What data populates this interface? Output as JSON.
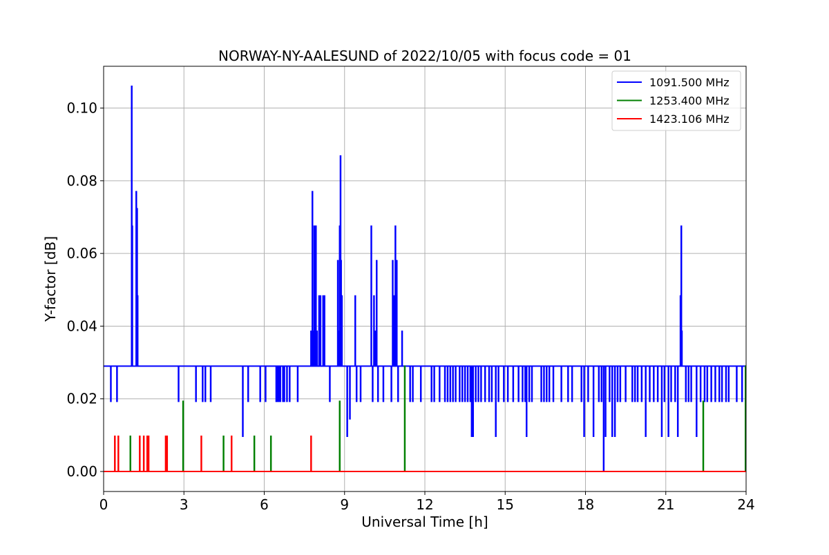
{
  "chart_data": {
    "type": "line",
    "title": "NORWAY-NY-AALESUND of 2022/10/05 with focus code = 01",
    "xlabel": "Universal Time [h]",
    "ylabel": "Y-factor [dB]",
    "xlim": [
      0,
      24
    ],
    "ylim": [
      -0.0055,
      0.1115
    ],
    "xticks": [
      0,
      3,
      6,
      9,
      12,
      15,
      18,
      21,
      24
    ],
    "xtick_labels": [
      "0",
      "3",
      "6",
      "9",
      "12",
      "15",
      "18",
      "21",
      "24"
    ],
    "yticks": [
      0.0,
      0.02,
      0.04,
      0.06,
      0.08,
      0.1
    ],
    "ytick_labels": [
      "0.00",
      "0.02",
      "0.04",
      "0.06",
      "0.08",
      "0.10"
    ],
    "grid": true,
    "legend_position": "top-right",
    "series": [
      {
        "name": "1091.500 MHz",
        "color": "#0000ff",
        "baseline": 0.029,
        "spikes": [
          [
            0.27,
            0.0193
          ],
          [
            0.5,
            0.0193
          ],
          [
            1.05,
            0.106
          ],
          [
            1.07,
            0.0675
          ],
          [
            1.1,
            0.029
          ],
          [
            1.22,
            0.077
          ],
          [
            1.25,
            0.0723
          ],
          [
            1.27,
            0.0483
          ],
          [
            2.8,
            0.0193
          ],
          [
            3.45,
            0.0193
          ],
          [
            3.7,
            0.0193
          ],
          [
            3.8,
            0.0193
          ],
          [
            4.0,
            0.0193
          ],
          [
            5.2,
            0.0097
          ],
          [
            5.4,
            0.0193
          ],
          [
            5.85,
            0.0193
          ],
          [
            6.05,
            0.0193
          ],
          [
            6.45,
            0.0193
          ],
          [
            6.5,
            0.0193
          ],
          [
            6.55,
            0.0193
          ],
          [
            6.6,
            0.0193
          ],
          [
            6.7,
            0.0193
          ],
          [
            6.75,
            0.0193
          ],
          [
            6.85,
            0.0193
          ],
          [
            6.95,
            0.0193
          ],
          [
            7.25,
            0.0193
          ],
          [
            7.75,
            0.0386
          ],
          [
            7.8,
            0.077
          ],
          [
            7.83,
            0.0386
          ],
          [
            7.87,
            0.0675
          ],
          [
            7.9,
            0.058
          ],
          [
            7.93,
            0.0675
          ],
          [
            7.97,
            0.0386
          ],
          [
            8.05,
            0.0483
          ],
          [
            8.1,
            0.0483
          ],
          [
            8.2,
            0.0483
          ],
          [
            8.25,
            0.0483
          ],
          [
            8.45,
            0.0193
          ],
          [
            8.75,
            0.058
          ],
          [
            8.78,
            0.0386
          ],
          [
            8.82,
            0.0675
          ],
          [
            8.85,
            0.0868
          ],
          [
            8.87,
            0.058
          ],
          [
            8.9,
            0.0483
          ],
          [
            9.1,
            0.0097
          ],
          [
            9.2,
            0.0145
          ],
          [
            9.4,
            0.0483
          ],
          [
            9.45,
            0.0193
          ],
          [
            9.6,
            0.0193
          ],
          [
            10.0,
            0.0675
          ],
          [
            10.05,
            0.0193
          ],
          [
            10.1,
            0.0483
          ],
          [
            10.15,
            0.0386
          ],
          [
            10.2,
            0.058
          ],
          [
            10.25,
            0.0193
          ],
          [
            10.45,
            0.0193
          ],
          [
            10.75,
            0.0193
          ],
          [
            10.8,
            0.058
          ],
          [
            10.85,
            0.0483
          ],
          [
            10.9,
            0.0675
          ],
          [
            10.95,
            0.058
          ],
          [
            11.0,
            0.0193
          ],
          [
            11.15,
            0.0386
          ],
          [
            11.45,
            0.0193
          ],
          [
            11.55,
            0.0193
          ],
          [
            11.85,
            0.0193
          ],
          [
            12.25,
            0.0193
          ],
          [
            12.35,
            0.0193
          ],
          [
            12.55,
            0.0193
          ],
          [
            12.75,
            0.0193
          ],
          [
            12.85,
            0.0193
          ],
          [
            12.95,
            0.0193
          ],
          [
            13.05,
            0.0193
          ],
          [
            13.15,
            0.0193
          ],
          [
            13.3,
            0.0193
          ],
          [
            13.4,
            0.0193
          ],
          [
            13.5,
            0.0193
          ],
          [
            13.6,
            0.0193
          ],
          [
            13.7,
            0.0193
          ],
          [
            13.75,
            0.0097
          ],
          [
            13.8,
            0.0097
          ],
          [
            13.9,
            0.0193
          ],
          [
            14.0,
            0.0193
          ],
          [
            14.1,
            0.0193
          ],
          [
            14.25,
            0.0193
          ],
          [
            14.4,
            0.0193
          ],
          [
            14.5,
            0.0193
          ],
          [
            14.65,
            0.0097
          ],
          [
            14.75,
            0.0193
          ],
          [
            14.95,
            0.0193
          ],
          [
            15.1,
            0.0193
          ],
          [
            15.3,
            0.0193
          ],
          [
            15.5,
            0.0193
          ],
          [
            15.65,
            0.0193
          ],
          [
            15.75,
            0.0193
          ],
          [
            15.8,
            0.0097
          ],
          [
            15.9,
            0.0193
          ],
          [
            16.0,
            0.0193
          ],
          [
            16.35,
            0.0193
          ],
          [
            16.45,
            0.0193
          ],
          [
            16.55,
            0.0193
          ],
          [
            16.65,
            0.0193
          ],
          [
            16.8,
            0.0193
          ],
          [
            17.1,
            0.0193
          ],
          [
            17.35,
            0.0193
          ],
          [
            17.5,
            0.0193
          ],
          [
            17.85,
            0.0193
          ],
          [
            17.95,
            0.0097
          ],
          [
            18.1,
            0.0193
          ],
          [
            18.3,
            0.0097
          ],
          [
            18.5,
            0.0193
          ],
          [
            18.6,
            0.0193
          ],
          [
            18.68,
            0.0
          ],
          [
            18.75,
            0.0097
          ],
          [
            18.9,
            0.0193
          ],
          [
            19.0,
            0.0097
          ],
          [
            19.1,
            0.0097
          ],
          [
            19.2,
            0.0193
          ],
          [
            19.3,
            0.0193
          ],
          [
            19.5,
            0.0193
          ],
          [
            19.75,
            0.0193
          ],
          [
            19.85,
            0.0193
          ],
          [
            19.95,
            0.0193
          ],
          [
            20.1,
            0.0193
          ],
          [
            20.25,
            0.0097
          ],
          [
            20.4,
            0.0193
          ],
          [
            20.55,
            0.0193
          ],
          [
            20.7,
            0.0193
          ],
          [
            20.85,
            0.0097
          ],
          [
            20.95,
            0.0193
          ],
          [
            21.1,
            0.0097
          ],
          [
            21.2,
            0.0193
          ],
          [
            21.35,
            0.0193
          ],
          [
            21.45,
            0.0097
          ],
          [
            21.55,
            0.0483
          ],
          [
            21.58,
            0.0675
          ],
          [
            21.6,
            0.0386
          ],
          [
            21.75,
            0.0193
          ],
          [
            21.85,
            0.0193
          ],
          [
            21.95,
            0.0193
          ],
          [
            22.15,
            0.0097
          ],
          [
            22.3,
            0.0193
          ],
          [
            22.45,
            0.0193
          ],
          [
            22.55,
            0.0193
          ],
          [
            22.7,
            0.0193
          ],
          [
            22.85,
            0.0193
          ],
          [
            23.0,
            0.0193
          ],
          [
            23.1,
            0.0193
          ],
          [
            23.25,
            0.0193
          ],
          [
            23.35,
            0.0193
          ],
          [
            23.65,
            0.0193
          ],
          [
            23.85,
            0.0193
          ]
        ]
      },
      {
        "name": "1253.400 MHz",
        "color": "#008000",
        "baseline": 0,
        "spikes": [
          [
            1.0,
            0.0097
          ],
          [
            2.97,
            0.0193
          ],
          [
            4.48,
            0.0097
          ],
          [
            5.63,
            0.0097
          ],
          [
            6.25,
            0.0097
          ],
          [
            8.82,
            0.0193
          ],
          [
            11.25,
            0.029
          ],
          [
            22.4,
            0.0193
          ],
          [
            23.98,
            0.029
          ]
        ]
      },
      {
        "name": "1423.106 MHz",
        "color": "#ff0000",
        "baseline": 0,
        "spikes": [
          [
            0.42,
            0.0097
          ],
          [
            0.55,
            0.0097
          ],
          [
            1.35,
            0.0097
          ],
          [
            1.5,
            0.0097
          ],
          [
            1.63,
            0.0097
          ],
          [
            1.68,
            0.0097
          ],
          [
            2.32,
            0.0097
          ],
          [
            2.37,
            0.0097
          ],
          [
            3.65,
            0.0097
          ],
          [
            4.78,
            0.0097
          ],
          [
            7.75,
            0.0097
          ]
        ]
      }
    ]
  }
}
